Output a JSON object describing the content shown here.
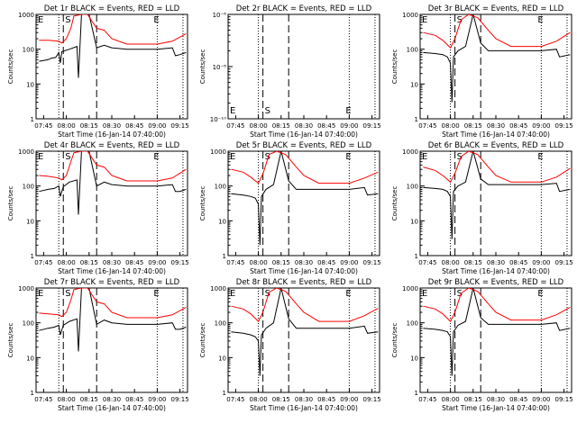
{
  "colors": {
    "events": "#000000",
    "lld": "#ff0000",
    "marker": "#000000"
  },
  "time_ticks": [
    "07:45",
    "08:00",
    "08:15",
    "08:30",
    "08:45",
    "09:00",
    "09:15"
  ],
  "log_ticks_counts": [
    "1",
    "10",
    "100",
    "1000"
  ],
  "log_ticks_small": [
    "10⁻¹⁰",
    "10⁻⁸",
    "10⁻⁶"
  ],
  "x_label": "Start Time (16-Jan-14 07:40:00)",
  "y_label": "Counts/sec",
  "marker_labels": {
    "start": "S",
    "end": "E"
  },
  "chart_data": [
    {
      "type": "line",
      "title": "Det 1r  BLACK = Events, RED = LLD",
      "xlabel": "Start Time (16-Jan-14 07:40:00)",
      "ylabel": "Counts/sec",
      "xlim": [
        "07:40",
        "09:20"
      ],
      "ylim": [
        1,
        1000
      ],
      "yscale": "log",
      "series": [
        {
          "name": "Events",
          "color": "#000000",
          "x": [
            "07:42",
            "07:48",
            "07:50",
            "07:53",
            "07:55",
            "07:56",
            "07:57",
            "08:02",
            "08:07",
            "08:08",
            "08:10",
            "08:15",
            "08:20",
            "08:25",
            "08:30",
            "08:40",
            "09:00",
            "09:10",
            "09:12",
            "09:15",
            "09:19"
          ],
          "y": [
            45,
            50,
            55,
            58,
            80,
            40,
            85,
            100,
            120,
            15,
            1000,
            1000,
            110,
            130,
            110,
            100,
            100,
            110,
            65,
            70,
            80
          ]
        },
        {
          "name": "LLD",
          "color": "#ff0000",
          "x": [
            "07:42",
            "07:48",
            "07:55",
            "07:57",
            "08:00",
            "08:03",
            "08:05",
            "08:10",
            "08:14",
            "08:20",
            "08:25",
            "08:30",
            "08:40",
            "09:00",
            "09:10",
            "09:19"
          ],
          "y": [
            180,
            180,
            170,
            150,
            200,
            400,
            900,
            1000,
            1000,
            400,
            350,
            200,
            140,
            140,
            170,
            280
          ]
        }
      ]
    },
    {
      "type": "line",
      "title": "Det 2r  BLACK = Events, RED = LLD",
      "xlabel": "Start Time (16-Jan-14 07:40:00)",
      "ylabel": "Counts/sec",
      "xlim": [
        "07:40",
        "09:20"
      ],
      "yscale": "log",
      "series": []
    },
    {
      "type": "line",
      "title": "Det 3r  BLACK = Events, RED = LLD",
      "xlabel": "Start Time (16-Jan-14 07:40:00)",
      "ylabel": "Counts/sec",
      "xlim": [
        "07:40",
        "09:20"
      ],
      "ylim": [
        1,
        1000
      ],
      "yscale": "log",
      "series": [
        {
          "name": "Events",
          "color": "#000000",
          "x": [
            "07:42",
            "07:50",
            "07:55",
            "07:58",
            "08:00",
            "08:01",
            "08:02",
            "08:05",
            "08:10",
            "08:15",
            "08:20",
            "08:25",
            "08:30",
            "08:40",
            "09:00",
            "09:10",
            "09:12",
            "09:19"
          ],
          "y": [
            80,
            75,
            70,
            60,
            40,
            3,
            60,
            90,
            120,
            1000,
            150,
            90,
            90,
            90,
            90,
            100,
            60,
            70
          ]
        },
        {
          "name": "LLD",
          "color": "#ff0000",
          "x": [
            "07:42",
            "07:50",
            "07:55",
            "08:00",
            "08:03",
            "08:07",
            "08:12",
            "08:18",
            "08:25",
            "08:30",
            "08:40",
            "09:00",
            "09:10",
            "09:19"
          ],
          "y": [
            300,
            250,
            180,
            110,
            200,
            700,
            1000,
            800,
            350,
            200,
            120,
            120,
            170,
            300
          ]
        }
      ]
    },
    {
      "type": "line",
      "title": "Det 4r  BLACK = Events, RED = LLD",
      "xlabel": "Start Time (16-Jan-14 07:40:00)",
      "ylabel": "Counts/sec",
      "xlim": [
        "07:40",
        "09:20"
      ],
      "ylim": [
        1,
        1000
      ],
      "yscale": "log",
      "series": [
        {
          "name": "Events",
          "color": "#000000",
          "x": [
            "07:42",
            "07:48",
            "07:52",
            "07:55",
            "07:56",
            "07:58",
            "08:02",
            "08:07",
            "08:08",
            "08:10",
            "08:15",
            "08:20",
            "08:25",
            "08:30",
            "08:40",
            "09:00",
            "09:10",
            "09:12",
            "09:15",
            "09:19"
          ],
          "y": [
            70,
            80,
            85,
            100,
            50,
            95,
            130,
            150,
            15,
            1000,
            1000,
            100,
            130,
            110,
            100,
            100,
            110,
            70,
            70,
            80
          ]
        },
        {
          "name": "LLD",
          "color": "#ff0000",
          "x": [
            "07:42",
            "07:48",
            "07:55",
            "07:57",
            "08:00",
            "08:03",
            "08:05",
            "08:10",
            "08:14",
            "08:20",
            "08:25",
            "08:30",
            "08:40",
            "09:00",
            "09:10",
            "09:19"
          ],
          "y": [
            200,
            190,
            170,
            150,
            200,
            500,
            900,
            1000,
            1000,
            400,
            350,
            200,
            140,
            140,
            170,
            300
          ]
        }
      ]
    },
    {
      "type": "line",
      "title": "Det 5r  BLACK = Events, RED = LLD",
      "xlabel": "Start Time (16-Jan-14 07:40:00)",
      "ylabel": "Counts/sec",
      "xlim": [
        "07:40",
        "09:20"
      ],
      "ylim": [
        1,
        1000
      ],
      "yscale": "log",
      "series": [
        {
          "name": "Events",
          "color": "#000000",
          "x": [
            "07:42",
            "07:50",
            "07:55",
            "07:58",
            "08:00",
            "08:01",
            "08:02",
            "08:05",
            "08:10",
            "08:15",
            "08:20",
            "08:25",
            "08:30",
            "08:40",
            "09:00",
            "09:10",
            "09:12",
            "09:19"
          ],
          "y": [
            60,
            55,
            50,
            45,
            30,
            2,
            50,
            80,
            110,
            1000,
            140,
            80,
            80,
            80,
            80,
            90,
            55,
            60
          ]
        },
        {
          "name": "LLD",
          "color": "#ff0000",
          "x": [
            "07:42",
            "07:50",
            "07:55",
            "08:00",
            "08:03",
            "08:07",
            "08:12",
            "08:18",
            "08:25",
            "08:30",
            "08:40",
            "09:00",
            "09:10",
            "09:19"
          ],
          "y": [
            300,
            250,
            180,
            120,
            220,
            800,
            1000,
            800,
            350,
            200,
            120,
            120,
            170,
            250
          ]
        }
      ]
    },
    {
      "type": "line",
      "title": "Det 6r  BLACK = Events, RED = LLD",
      "xlabel": "Start Time (16-Jan-14 07:40:00)",
      "ylabel": "Counts/sec",
      "xlim": [
        "07:40",
        "09:20"
      ],
      "ylim": [
        1,
        1000
      ],
      "yscale": "log",
      "series": [
        {
          "name": "Events",
          "color": "#000000",
          "x": [
            "07:42",
            "07:50",
            "07:55",
            "07:58",
            "08:00",
            "08:01",
            "08:02",
            "08:05",
            "08:10",
            "08:15",
            "08:20",
            "08:25",
            "08:30",
            "08:40",
            "09:00",
            "09:10",
            "09:12",
            "09:19"
          ],
          "y": [
            90,
            85,
            80,
            70,
            50,
            3,
            70,
            100,
            130,
            1000,
            160,
            110,
            110,
            110,
            110,
            120,
            70,
            80
          ]
        },
        {
          "name": "LLD",
          "color": "#ff0000",
          "x": [
            "07:42",
            "07:50",
            "07:55",
            "08:00",
            "08:03",
            "08:07",
            "08:12",
            "08:18",
            "08:25",
            "08:30",
            "08:40",
            "09:00",
            "09:10",
            "09:19"
          ],
          "y": [
            350,
            280,
            200,
            130,
            230,
            700,
            1000,
            800,
            350,
            200,
            130,
            130,
            180,
            320
          ]
        }
      ]
    },
    {
      "type": "line",
      "title": "Det 7r  BLACK = Events, RED = LLD",
      "xlabel": "Start Time (16-Jan-14 07:40:00)",
      "ylabel": "Counts/sec",
      "xlim": [
        "07:40",
        "09:20"
      ],
      "ylim": [
        1,
        1000
      ],
      "yscale": "log",
      "series": [
        {
          "name": "Events",
          "color": "#000000",
          "x": [
            "07:42",
            "07:48",
            "07:52",
            "07:55",
            "07:56",
            "07:58",
            "08:02",
            "08:07",
            "08:08",
            "08:10",
            "08:15",
            "08:20",
            "08:25",
            "08:30",
            "08:40",
            "09:00",
            "09:10",
            "09:12",
            "09:15",
            "09:19"
          ],
          "y": [
            60,
            70,
            75,
            85,
            45,
            85,
            110,
            130,
            15,
            1000,
            1000,
            90,
            120,
            100,
            90,
            90,
            100,
            65,
            65,
            75
          ]
        },
        {
          "name": "LLD",
          "color": "#ff0000",
          "x": [
            "07:42",
            "07:48",
            "07:55",
            "07:57",
            "08:00",
            "08:03",
            "08:05",
            "08:10",
            "08:14",
            "08:20",
            "08:25",
            "08:30",
            "08:40",
            "09:00",
            "09:10",
            "09:19"
          ],
          "y": [
            190,
            180,
            170,
            150,
            200,
            450,
            900,
            1000,
            1000,
            400,
            350,
            200,
            140,
            140,
            170,
            280
          ]
        }
      ]
    },
    {
      "type": "line",
      "title": "Det 8r  BLACK = Events, RED = LLD",
      "xlabel": "Start Time (16-Jan-14 07:40:00)",
      "ylabel": "Counts/sec",
      "xlim": [
        "07:40",
        "09:20"
      ],
      "ylim": [
        1,
        1000
      ],
      "yscale": "log",
      "series": [
        {
          "name": "Events",
          "color": "#000000",
          "x": [
            "07:42",
            "07:50",
            "07:55",
            "07:58",
            "08:00",
            "08:01",
            "08:02",
            "08:05",
            "08:10",
            "08:15",
            "08:20",
            "08:25",
            "08:30",
            "08:40",
            "09:00",
            "09:10",
            "09:12",
            "09:19"
          ],
          "y": [
            55,
            50,
            45,
            40,
            30,
            3,
            45,
            70,
            100,
            1000,
            130,
            70,
            70,
            70,
            70,
            80,
            50,
            55
          ]
        },
        {
          "name": "LLD",
          "color": "#ff0000",
          "x": [
            "07:42",
            "07:50",
            "07:55",
            "08:00",
            "08:03",
            "08:07",
            "08:12",
            "08:18",
            "08:25",
            "08:30",
            "08:40",
            "09:00",
            "09:10",
            "09:19"
          ],
          "y": [
            300,
            250,
            180,
            110,
            200,
            750,
            1000,
            800,
            350,
            200,
            110,
            110,
            160,
            260
          ]
        }
      ]
    },
    {
      "type": "line",
      "title": "Det 9r  BLACK = Events, RED = LLD",
      "xlabel": "Start Time (16-Jan-14 07:40:00)",
      "ylabel": "Counts/sec",
      "xlim": [
        "07:40",
        "09:20"
      ],
      "ylim": [
        1,
        1000
      ],
      "yscale": "log",
      "series": [
        {
          "name": "Events",
          "color": "#000000",
          "x": [
            "07:42",
            "07:50",
            "07:55",
            "07:58",
            "08:00",
            "08:01",
            "08:02",
            "08:05",
            "08:10",
            "08:15",
            "08:20",
            "08:25",
            "08:30",
            "08:40",
            "09:00",
            "09:10",
            "09:12",
            "09:19"
          ],
          "y": [
            70,
            65,
            60,
            55,
            40,
            3,
            55,
            85,
            110,
            1000,
            140,
            90,
            90,
            90,
            90,
            100,
            60,
            70
          ]
        },
        {
          "name": "LLD",
          "color": "#ff0000",
          "x": [
            "07:42",
            "07:50",
            "07:55",
            "08:00",
            "08:03",
            "08:07",
            "08:12",
            "08:18",
            "08:25",
            "08:30",
            "08:40",
            "09:00",
            "09:10",
            "09:19"
          ],
          "y": [
            300,
            250,
            180,
            110,
            200,
            700,
            1000,
            800,
            350,
            200,
            120,
            120,
            170,
            280
          ]
        }
      ]
    }
  ]
}
